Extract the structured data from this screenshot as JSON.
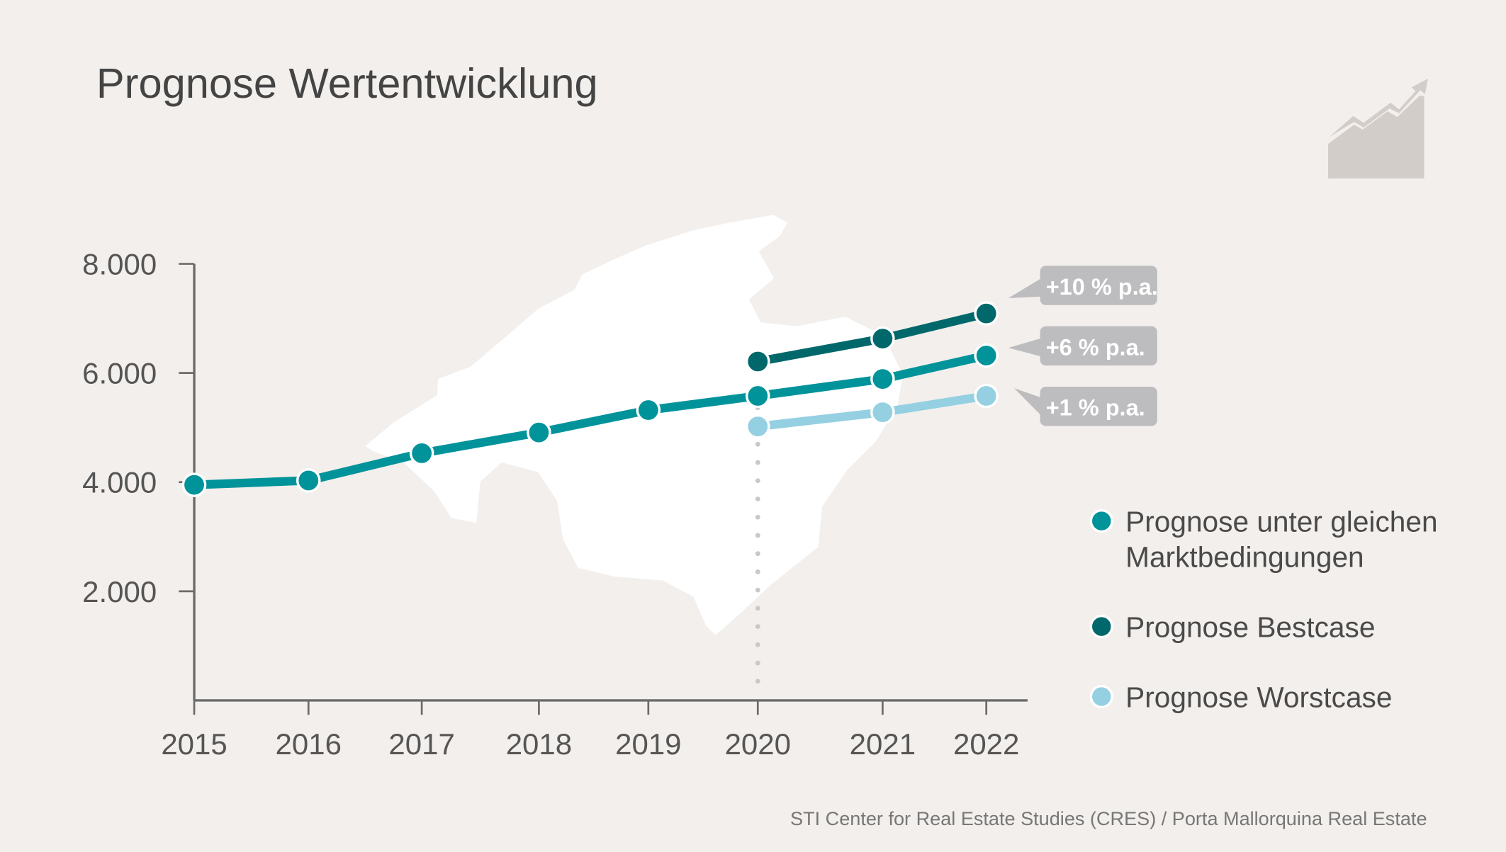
{
  "chart_data": {
    "type": "line",
    "title": "Prognose Wertentwicklung",
    "xlabel": "",
    "ylabel": "",
    "categories": [
      "2015",
      "2016",
      "2017",
      "2018",
      "2019",
      "2020",
      "2021",
      "2022"
    ],
    "ylim": [
      0,
      8000
    ],
    "yticks": [
      2000,
      4000,
      6000,
      8000
    ],
    "ytick_labels": [
      "2.000",
      "4.000",
      "6.000",
      "8.000"
    ],
    "grid": false,
    "series": [
      {
        "name": "Prognose unter gleichen Marktbedingungen",
        "legend_lines": [
          "Prognose unter gleichen",
          "Marktbedingungen"
        ],
        "color": "#00939a",
        "x": [
          "2015",
          "2016",
          "2017",
          "2018",
          "2019",
          "2020",
          "2021",
          "2022"
        ],
        "values": [
          3950,
          4030,
          4530,
          4910,
          5320,
          5580,
          5890,
          6320
        ],
        "annotation": "+6 % p.a."
      },
      {
        "name": "Prognose Bestcase",
        "legend_lines": [
          "Prognose Bestcase"
        ],
        "color": "#00686b",
        "x": [
          "2020",
          "2021",
          "2022"
        ],
        "values": [
          6210,
          6630,
          7090
        ],
        "annotation": "+10 % p.a."
      },
      {
        "name": "Prognose Worstcase",
        "legend_lines": [
          "Prognose Worstcase"
        ],
        "color": "#94d0e2",
        "x": [
          "2020",
          "2021",
          "2022"
        ],
        "values": [
          5020,
          5280,
          5580
        ],
        "annotation": "+1 % p.a."
      }
    ],
    "reference_line_x": "2020",
    "legend_position": "right",
    "source": "STI Center for Real Estate Studies (CRES) / Porta Mallorquina Real Estate"
  }
}
